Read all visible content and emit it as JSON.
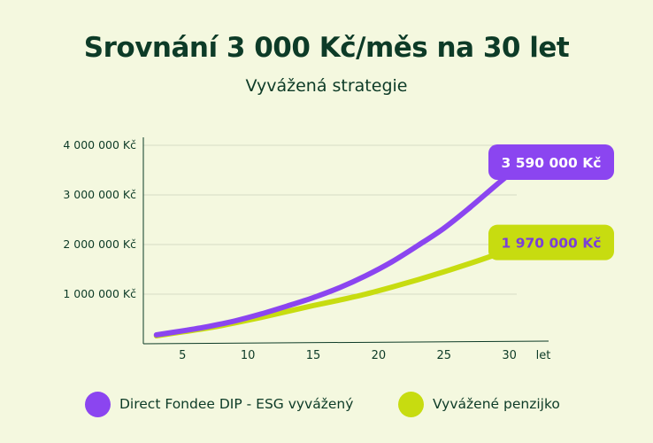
{
  "title": "Srovnání 3 000 Kč/měs na 30 let",
  "subtitle": "Vyvážená strategie",
  "chart_data": {
    "type": "line",
    "title": "Srovnání 3 000 Kč/měs na 30 let",
    "subtitle": "Vyvážená strategie",
    "xlabel": "let",
    "ylabel": "",
    "x_ticks": [
      5,
      10,
      15,
      20,
      25,
      30
    ],
    "x_tick_labels": [
      "5",
      "10",
      "15",
      "20",
      "25",
      "30"
    ],
    "y_ticks": [
      1000000,
      2000000,
      3000000,
      4000000
    ],
    "y_tick_labels": [
      "1 000 000 Kč",
      "2 000 000 Kč",
      "3 000 000 Kč",
      "4 000 000 Kč"
    ],
    "xlim": [
      2,
      33
    ],
    "ylim": [
      0,
      4000000
    ],
    "grid": "horizontal",
    "legend_position": "bottom",
    "series": [
      {
        "name": "Direct Fondee DIP - ESG vyvážený",
        "color": "#8b45f0",
        "end_label": "3 590 000 Kč",
        "x": [
          3,
          5,
          7,
          9,
          11,
          13,
          15,
          17,
          19,
          21,
          23,
          25,
          27,
          29,
          30.8
        ],
        "values": [
          180000,
          260000,
          350000,
          460000,
          600000,
          760000,
          930000,
          1130000,
          1370000,
          1650000,
          1980000,
          2330000,
          2750000,
          3200000,
          3590000
        ]
      },
      {
        "name": "Vyvážené penzijko",
        "color": "#c7dc10",
        "end_label": "1 970 000 Kč",
        "x": [
          3,
          5,
          7,
          9,
          11,
          13,
          15,
          17,
          19,
          21,
          23,
          25,
          27,
          29,
          30.8
        ],
        "values": [
          160000,
          240000,
          320000,
          420000,
          530000,
          650000,
          770000,
          880000,
          1000000,
          1140000,
          1290000,
          1450000,
          1620000,
          1800000,
          1970000
        ]
      }
    ]
  }
}
